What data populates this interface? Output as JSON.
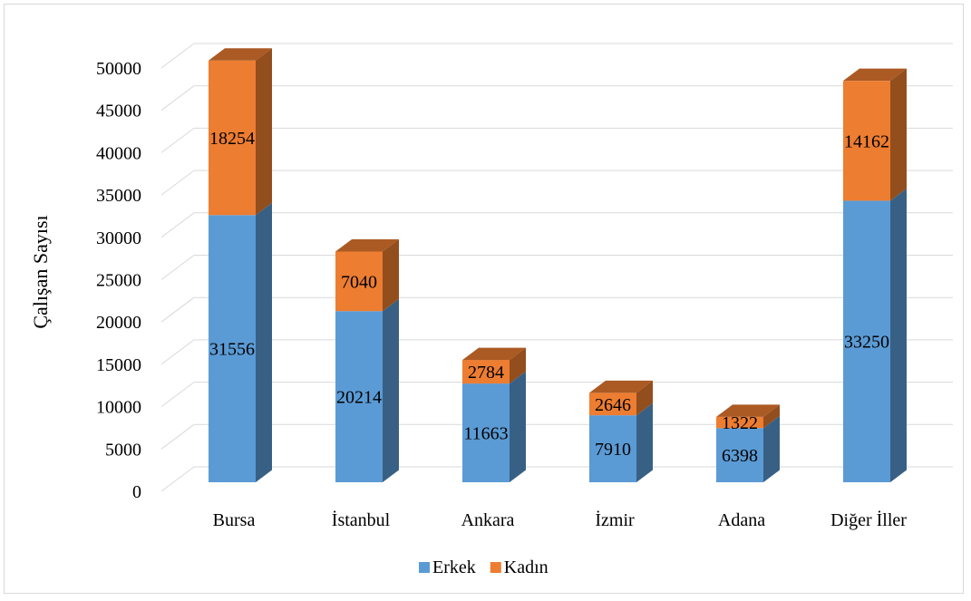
{
  "chart_data": {
    "type": "bar",
    "stacked": true,
    "three_d": true,
    "title": "",
    "xlabel": "",
    "ylabel": "Çalışan Sayısı",
    "ylim": [
      0,
      50000
    ],
    "yticks": [
      0,
      5000,
      10000,
      15000,
      20000,
      25000,
      30000,
      35000,
      40000,
      45000,
      50000
    ],
    "ytick_labels": [
      "0",
      "5000",
      "10000",
      "15000",
      "20000",
      "25000",
      "30000",
      "35000",
      "40000",
      "45000",
      "50000"
    ],
    "grid": true,
    "legend_position": "bottom",
    "categories": [
      "Bursa",
      "İstanbul",
      "Ankara",
      "İzmir",
      "Adana",
      "Diğer İller"
    ],
    "series": [
      {
        "name": "Erkek",
        "color": "#5b9bd5",
        "values": [
          31556,
          20214,
          11663,
          7910,
          6398,
          33250
        ],
        "labels": [
          "31556",
          "20214",
          "11663",
          "7910",
          "6398",
          "33250"
        ]
      },
      {
        "name": "Kadın",
        "color": "#ed7d31",
        "values": [
          18254,
          7040,
          2784,
          2646,
          1322,
          14162
        ],
        "labels": [
          "18254",
          "7040",
          "2784",
          "2646",
          "1322",
          "14162"
        ]
      }
    ]
  }
}
